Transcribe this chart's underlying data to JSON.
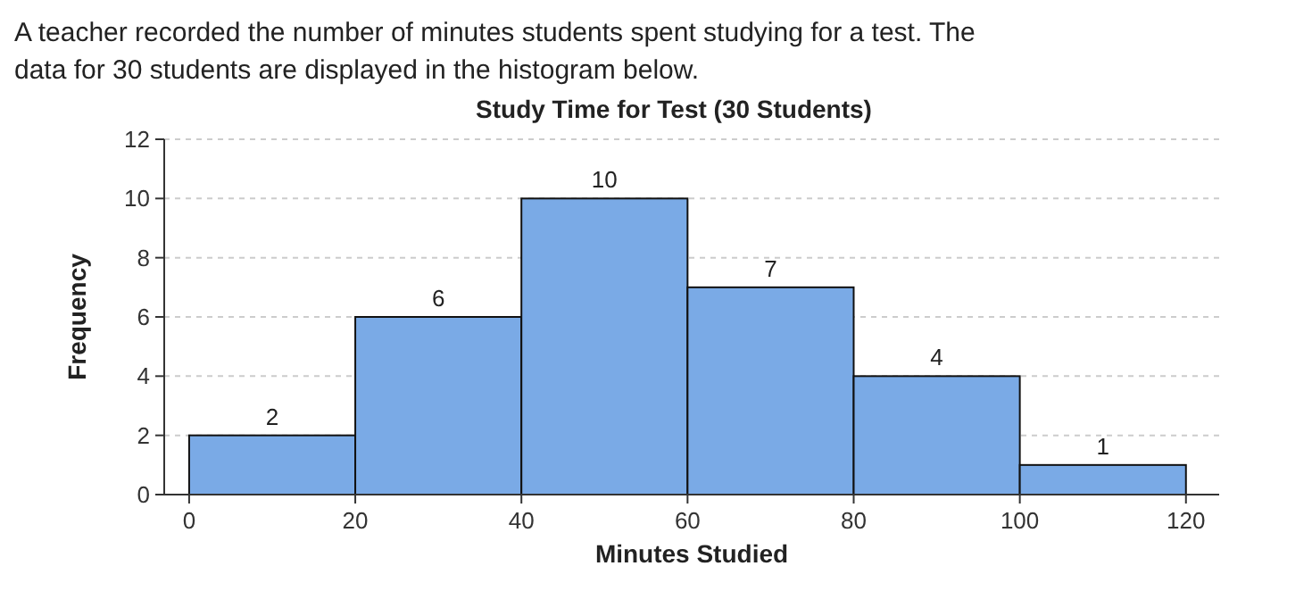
{
  "chart_data": {
    "type": "histogram",
    "title": "Study Time for Test (30 Students)",
    "xlabel": "Minutes Studied",
    "ylabel": "Frequency",
    "annotations": [
      "A teacher recorded the number of minutes students spent studying for a test.  The data for 30 students are displayed in the histogram below."
    ],
    "bins": [
      0,
      20,
      40,
      60,
      80,
      100,
      120
    ],
    "values": [
      2,
      6,
      10,
      7,
      4,
      1
    ],
    "color": "#7aaae6",
    "xlim": [
      -3,
      124
    ],
    "xticks": [
      0,
      20,
      40,
      60,
      80,
      100,
      120
    ],
    "ylim": [
      0,
      12
    ],
    "yticks": [
      0,
      2,
      4,
      6,
      8,
      10,
      12
    ],
    "grid": "y",
    "data_labels": true
  }
}
